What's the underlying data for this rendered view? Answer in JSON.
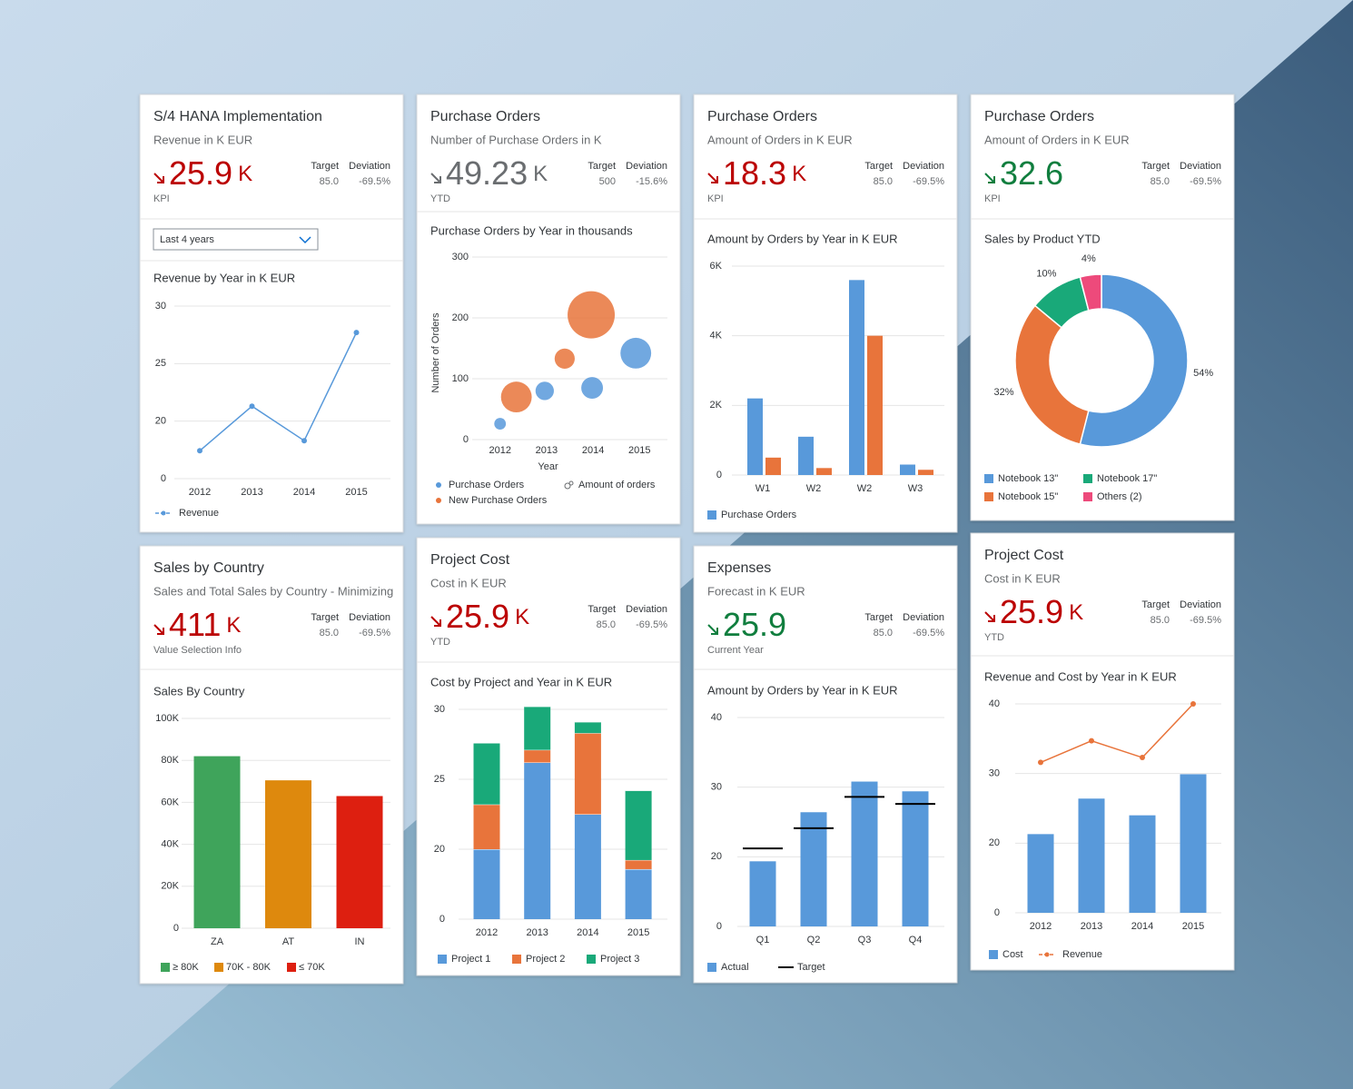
{
  "cards": [
    {
      "title": "S/4 HANA Implementation",
      "subtitle": "Revenue in K EUR",
      "kpi": "25.9",
      "kpi_unit": "K",
      "kpi_label": "KPI",
      "kpi_color": "#bb0000",
      "target_label": "Target",
      "target": "85.0",
      "deviation_label": "Deviation",
      "deviation": "-69.5%",
      "filter": "Last 4 years",
      "chart_data": {
        "type": "line",
        "title": "Revenue by Year in K EUR",
        "categories": [
          "2012",
          "2013",
          "2014",
          "2015"
        ],
        "series": [
          {
            "name": "Revenue",
            "color": "#5899da",
            "values": [
              9.7,
              21.3,
              13.2,
              27.7
            ]
          }
        ],
        "ylim": [
          0,
          30
        ],
        "yticks": [
          0,
          20,
          25,
          30
        ],
        "broken_axis": true,
        "grid": true
      }
    },
    {
      "title": "Purchase Orders",
      "subtitle": "Number of Purchase Orders in K",
      "kpi": "49.23",
      "kpi_unit": "K",
      "kpi_label": "YTD",
      "kpi_color": "#6a6d70",
      "target_label": "Target",
      "target": "500",
      "deviation_label": "Deviation",
      "deviation": "-15.6%",
      "chart_data": {
        "type": "bubble",
        "title": "Purchase Orders by Year in thousands",
        "x_label": "Year",
        "y_label": "Number of Orders",
        "size_label": "Amount of orders",
        "series": [
          {
            "name": "Purchase Orders",
            "color": "#5899da",
            "x": [
              2012,
              2012.96,
              2013.98,
              2014.92
            ],
            "values": [
              26,
              80,
              85,
              142
            ],
            "sizes": [
              4,
              10,
              14,
              28
            ]
          },
          {
            "name": "New Purchase Orders",
            "color": "#e8743b",
            "x": [
              2012.35,
              2013.39,
              2013.96
            ],
            "values": [
              70,
              133,
              205
            ],
            "sizes": [
              28,
              12,
              66
            ]
          }
        ],
        "xlim": [
          2011.4,
          2015.6
        ],
        "xticks": [
          2012,
          2013,
          2014,
          2015
        ],
        "ylim": [
          0,
          300
        ],
        "yticks": [
          0,
          100,
          200,
          300
        ],
        "grid": true
      }
    },
    {
      "title": "Purchase Orders",
      "subtitle": "Amount of Orders in K EUR",
      "kpi": "18.3",
      "kpi_unit": "K",
      "kpi_label": "KPI",
      "kpi_color": "#bb0000",
      "target_label": "Target",
      "target": "85.0",
      "deviation_label": "Deviation",
      "deviation": "-69.5%",
      "chart_data": {
        "type": "grouped_bar",
        "title": "Amount by Orders by Year in K EUR",
        "categories": [
          "W1",
          "W2",
          "W2",
          "W3"
        ],
        "series": [
          {
            "name": "Purchase Orders",
            "color": "#5899da",
            "values": [
              2200,
              1100,
              5600,
              300
            ]
          },
          {
            "color": "#e8743b",
            "values": [
              500,
              200,
              4000,
              150
            ]
          }
        ],
        "ylim": [
          0,
          6000
        ],
        "yticks": [
          0,
          {
            "value": 2000,
            "label": "2K"
          },
          {
            "value": 4000,
            "label": "4K"
          },
          {
            "value": 6000,
            "label": "6K"
          }
        ],
        "grid": true
      }
    },
    {
      "title": "Purchase Orders",
      "subtitle": "Amount of Orders in K EUR",
      "kpi": "32.6",
      "kpi_label": "KPI",
      "kpi_color": "#107e3e",
      "target_label": "Target",
      "target": "85.0",
      "deviation_label": "Deviation",
      "deviation": "-69.5%",
      "chart_data": {
        "type": "donut",
        "title": "Sales by Product YTD",
        "categories": [
          "Notebook 13\"",
          "Notebook 15\"",
          "Notebook 17\"",
          "Others (2)"
        ],
        "values": [
          54,
          32,
          10,
          4
        ],
        "value_labels": [
          "54%",
          "32%",
          "10%",
          "4%"
        ],
        "colors": [
          "#5899da",
          "#e8743b",
          "#19a979",
          "#ed4a7b"
        ]
      }
    },
    {
      "title": "Sales by Country",
      "subtitle": "Sales and Total Sales by Country - Minimizing",
      "kpi": "411",
      "kpi_unit": "K",
      "kpi_label": "Value Selection Info",
      "kpi_color": "#bb0000",
      "target_label": "Target",
      "target": "85.0",
      "deviation_label": "Deviation",
      "deviation": "-69.5%",
      "chart_data": {
        "type": "bar",
        "title": "Sales By Country",
        "categories": [
          "ZA",
          "AT",
          "IN"
        ],
        "values": [
          82000,
          70500,
          63000
        ],
        "colors": [
          "#3fa45b",
          "#de890d",
          "#dd1f10"
        ],
        "ylim": [
          0,
          100000
        ],
        "yticks": [
          0,
          {
            "value": 20000,
            "label": "20K"
          },
          {
            "value": 40000,
            "label": "40K"
          },
          {
            "value": 60000,
            "label": "60K"
          },
          {
            "value": 80000,
            "label": "80K"
          },
          {
            "value": 100000,
            "label": "100K"
          }
        ],
        "grid": true,
        "legend": [
          {
            "label": "≥ 80K",
            "color": "#3fa45b"
          },
          {
            "label": "70K - 80K",
            "color": "#de890d"
          },
          {
            "label": "≤ 70K",
            "color": "#dd1f10"
          }
        ]
      }
    },
    {
      "title": "Project Cost",
      "subtitle": "Cost in K EUR",
      "kpi": "25.9",
      "kpi_unit": "K",
      "kpi_label": "YTD",
      "kpi_color": "#bb0000",
      "target_label": "Target",
      "target": "85.0",
      "deviation_label": "Deviation",
      "deviation": "-69.5%",
      "chart_data": {
        "type": "stacked_bar",
        "title": "Cost by Project and Year in K EUR",
        "categories": [
          "2012",
          "2013",
          "2014",
          "2015"
        ],
        "series": [
          {
            "name": "Project 1",
            "color": "#5899da",
            "values": [
              20.0,
              26.2,
              22.5,
              14.3
            ]
          },
          {
            "name": "Project 2",
            "color": "#e8743b",
            "values": [
              3.2,
              0.9,
              5.8,
              2.6
            ]
          },
          {
            "name": "Project 3",
            "color": "#19a979",
            "values": [
              4.4,
              3.1,
              0.8,
              7.3
            ]
          }
        ],
        "ylim": [
          0,
          30
        ],
        "yticks": [
          0,
          20,
          25,
          30
        ],
        "broken_axis": true,
        "grid": true
      }
    },
    {
      "title": "Expenses",
      "subtitle": "Forecast in K EUR",
      "kpi": "25.9",
      "kpi_label": "Current Year",
      "kpi_color": "#107e3e",
      "target_label": "Target",
      "target": "85.0",
      "deviation_label": "Deviation",
      "deviation": "-69.5%",
      "chart_data": {
        "type": "bar_target",
        "title": "Amount by Orders by Year in K EUR",
        "categories": [
          "Q1",
          "Q2",
          "Q3",
          "Q4"
        ],
        "series": [
          {
            "name": "Actual",
            "color": "#5899da",
            "values": [
              18.7,
              26.4,
              30.8,
              29.4
            ]
          },
          {
            "name": "Target",
            "color": "#000000",
            "values": [
              21.2,
              24.1,
              28.6,
              27.6
            ]
          }
        ],
        "ylim": [
          0,
          40
        ],
        "yticks": [
          0,
          20,
          30,
          40
        ],
        "broken_axis": true,
        "grid": true
      }
    },
    {
      "title": "Project Cost",
      "subtitle": "Cost in K EUR",
      "kpi": "25.9",
      "kpi_unit": "K",
      "kpi_label": "YTD",
      "kpi_color": "#bb0000",
      "target_label": "Target",
      "target": "85.0",
      "deviation_label": "Deviation",
      "deviation": "-69.5%",
      "chart_data": {
        "type": "bar_line",
        "title": "Revenue and Cost by Year in K EUR",
        "categories": [
          "2012",
          "2013",
          "2014",
          "2015"
        ],
        "series": [
          {
            "name": "Cost",
            "type": "bar",
            "color": "#5899da",
            "values": [
              21.3,
              26.4,
              24.0,
              29.9
            ]
          },
          {
            "name": "Revenue",
            "type": "line",
            "color": "#e8743b",
            "values": [
              31.6,
              34.7,
              32.3,
              40.0
            ]
          }
        ],
        "ylim": [
          0,
          40
        ],
        "yticks": [
          0,
          20,
          30,
          40
        ],
        "broken_axis": true,
        "grid": true
      }
    }
  ]
}
